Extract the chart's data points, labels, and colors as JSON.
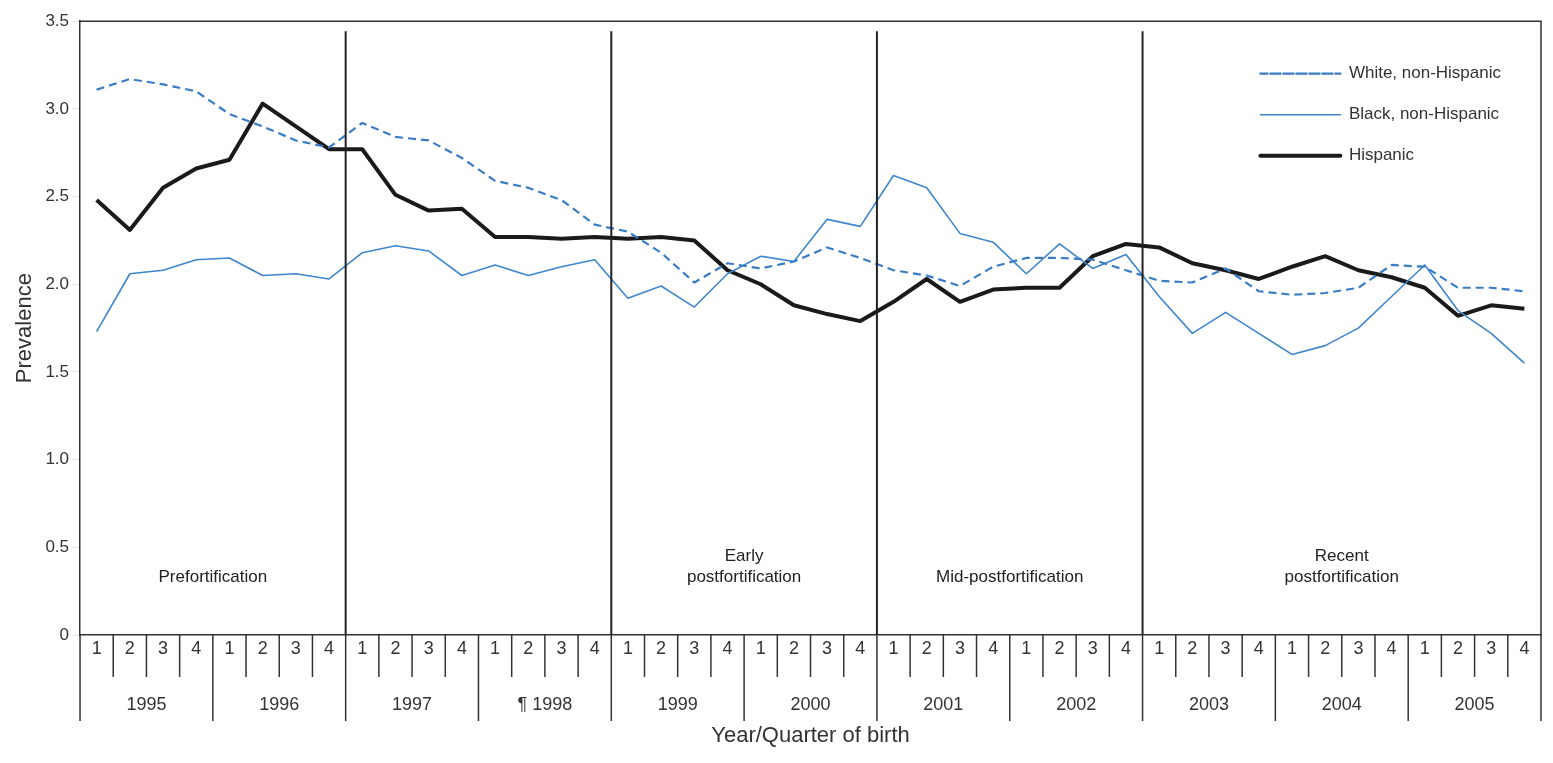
{
  "chart_data": {
    "type": "line",
    "xlabel": "Year/Quarter of birth",
    "ylabel": "Prevalence",
    "categories": [
      "1",
      "2",
      "3",
      "4",
      "1",
      "2",
      "3",
      "4",
      "1",
      "2",
      "3",
      "4",
      "1",
      "2",
      "3",
      "4",
      "1",
      "2",
      "3",
      "4",
      "1",
      "2",
      "3",
      "4",
      "1",
      "2",
      "3",
      "4",
      "1",
      "2",
      "3",
      "4",
      "1",
      "2",
      "3",
      "4",
      "1",
      "2",
      "3",
      "4",
      "1",
      "2",
      "3",
      "4"
    ],
    "ylim": [
      0,
      3.5
    ],
    "yticks": [
      {
        "value": 0,
        "label": "0"
      },
      {
        "value": 0.5,
        "label": "0.5"
      },
      {
        "value": 1,
        "label": "1.0"
      },
      {
        "value": 1.5,
        "label": "1.5"
      },
      {
        "value": 2,
        "label": "2.0"
      },
      {
        "value": 2.5,
        "label": "2.5"
      },
      {
        "value": 3,
        "label": "3.0"
      },
      {
        "value": 3.5,
        "label": "3.5"
      }
    ],
    "grid": false,
    "legend": "top right",
    "series": [
      {
        "name": "White, non-Hispanic",
        "color": "#3a7cc4",
        "line_style": "dashed",
        "values": [
          3.11,
          3.17,
          3.14,
          3.1,
          2.97,
          2.9,
          2.82,
          2.78,
          2.92,
          2.84,
          2.82,
          2.72,
          2.59,
          2.55,
          2.48,
          2.34,
          2.3,
          2.18,
          2.01,
          2.12,
          2.09,
          2.13,
          2.21,
          2.15,
          2.08,
          2.05,
          1.99,
          2.1,
          2.15,
          2.15,
          2.14,
          2.08,
          2.02,
          2.01,
          2.09,
          1.96,
          1.94,
          1.95,
          1.98,
          2.11,
          2.1,
          1.98,
          1.98,
          1.96
        ]
      },
      {
        "name": "Black, non-Hispanic",
        "color": "#3f86cc",
        "line_style": "solid",
        "values": [
          1.73,
          2.06,
          2.08,
          2.14,
          2.15,
          2.05,
          2.06,
          2.03,
          2.18,
          2.22,
          2.19,
          2.05,
          2.11,
          2.05,
          2.1,
          2.14,
          1.92,
          1.99,
          1.87,
          2.06,
          2.16,
          2.13,
          2.37,
          2.33,
          2.62,
          2.55,
          2.29,
          2.24,
          2.06,
          2.23,
          2.09,
          2.17,
          1.93,
          1.72,
          1.84,
          1.72,
          1.6,
          1.65,
          1.75,
          1.93,
          2.11,
          1.85,
          1.72,
          1.55
        ]
      },
      {
        "name": "Hispanic",
        "color": "#1a1a1a",
        "line_style": "solid",
        "values": [
          2.48,
          2.31,
          2.55,
          2.66,
          2.71,
          3.03,
          2.9,
          2.77,
          2.77,
          2.51,
          2.42,
          2.43,
          2.27,
          2.27,
          2.26,
          2.27,
          2.26,
          2.27,
          2.25,
          2.08,
          2,
          1.88,
          1.83,
          1.79,
          1.9,
          2.03,
          1.9,
          1.97,
          1.98,
          1.98,
          2.16,
          2.23,
          2.21,
          2.12,
          2.08,
          2.03,
          2.1,
          2.16,
          2.08,
          2.04,
          1.98,
          1.82,
          1.88,
          1.86
        ]
      }
    ],
    "annotations": [
      "1995",
      "1996",
      "1997",
      "¶ 1998",
      "1999",
      "2000",
      "2001",
      "2002",
      "2003",
      "2004",
      "2005",
      "Prefortification",
      "Early postfortification",
      "Mid-postfortification",
      "Recent postfortification"
    ]
  }
}
